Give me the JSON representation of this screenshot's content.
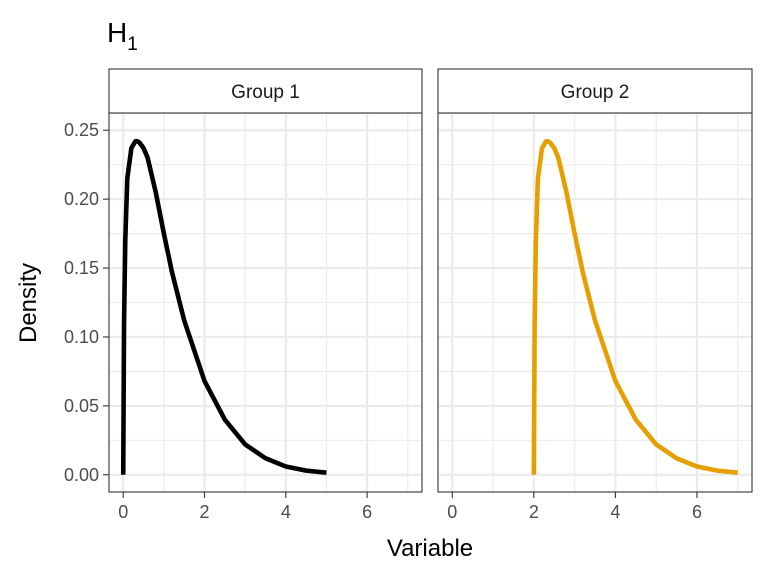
{
  "title_main": "H",
  "title_sub": "1",
  "xlabel": "Variable",
  "ylabel": "Density",
  "colors": {
    "group1": "#000000",
    "group2": "#E69F00",
    "grid": "#ebebeb",
    "strip_fill": "#ffffff",
    "panel_border": "#333333"
  },
  "chart_data": {
    "type": "line",
    "title": "H₁",
    "xlabel": "Variable",
    "ylabel": "Density",
    "xlim": [
      -0.35,
      7.35
    ],
    "ylim": [
      -0.0125,
      0.2625
    ],
    "x_ticks": [
      0,
      2,
      4,
      6
    ],
    "x_tick_labels": [
      "0",
      "2",
      "4",
      "6"
    ],
    "y_ticks": [
      0.0,
      0.05,
      0.1,
      0.15,
      0.2,
      0.25
    ],
    "y_tick_labels": [
      "0.00",
      "0.05",
      "0.10",
      "0.15",
      "0.20",
      "0.25"
    ],
    "grid": true,
    "legend": "none",
    "panels": [
      {
        "strip_label": "Group 1",
        "color": "#000000",
        "x": [
          0,
          0.02,
          0.05,
          0.1,
          0.2,
          0.3,
          0.35,
          0.4,
          0.5,
          0.6,
          0.8,
          1.0,
          1.2,
          1.5,
          2.0,
          2.5,
          3.0,
          3.5,
          4.0,
          4.5,
          5.0
        ],
        "y": [
          0,
          0.11,
          0.17,
          0.215,
          0.237,
          0.242,
          0.242,
          0.241,
          0.237,
          0.23,
          0.205,
          0.175,
          0.147,
          0.112,
          0.068,
          0.04,
          0.022,
          0.012,
          0.006,
          0.003,
          0.0015
        ]
      },
      {
        "strip_label": "Group 2",
        "color": "#E69F00",
        "x": [
          2,
          2.02,
          2.05,
          2.1,
          2.2,
          2.3,
          2.35,
          2.4,
          2.5,
          2.6,
          2.8,
          3.0,
          3.2,
          3.5,
          4.0,
          4.5,
          5.0,
          5.5,
          6.0,
          6.5,
          7.0
        ],
        "y": [
          0,
          0.11,
          0.17,
          0.215,
          0.237,
          0.242,
          0.242,
          0.241,
          0.237,
          0.23,
          0.205,
          0.175,
          0.147,
          0.112,
          0.068,
          0.04,
          0.022,
          0.012,
          0.006,
          0.003,
          0.0015
        ]
      }
    ]
  }
}
